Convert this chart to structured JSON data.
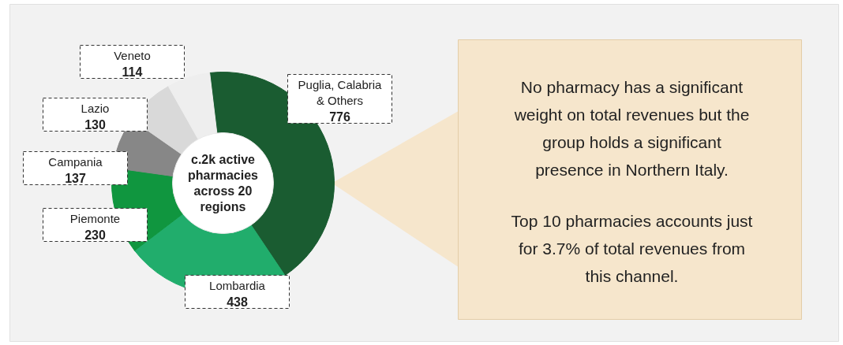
{
  "chart_data": {
    "type": "donut",
    "title": "c.2k active pharmacies across 20 regions",
    "categories": [
      "Puglia, Calabria & Others",
      "Lombardia",
      "Piemonte",
      "Campania",
      "Lazio",
      "Veneto"
    ],
    "values": [
      776,
      438,
      230,
      137,
      130,
      114
    ],
    "colors": [
      "#1a5c31",
      "#21ad6c",
      "#10963f",
      "#878787",
      "#d9d9d9",
      "#eeeeee"
    ],
    "data_labels": true,
    "annotations": [
      "No pharmacy has a significant weight on total revenues but the group holds a significant presence in Northern Italy.",
      "Top 10 pharmacies accounts just for 3.7% of total revenues from this channel."
    ]
  }
}
